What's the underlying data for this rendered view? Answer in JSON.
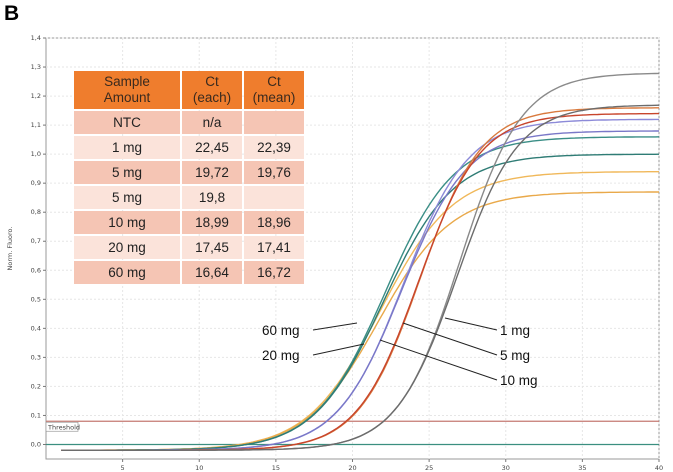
{
  "panel_label": "B",
  "chart_data": {
    "type": "line",
    "title": "",
    "xlabel": "",
    "ylabel": "Norm. Fluoro.",
    "xlim": [
      0,
      40
    ],
    "ylim": [
      -0.05,
      1.4
    ],
    "xticks": [
      5,
      10,
      15,
      20,
      25,
      30,
      35,
      40
    ],
    "yticks": [
      0.0,
      0.1,
      0.2,
      0.3,
      0.4,
      0.5,
      0.6,
      0.7,
      0.8,
      0.9,
      1.0,
      1.1,
      1.2,
      1.3,
      1.4
    ],
    "ytick_labels": [
      "0,0",
      "0,1",
      "0,2",
      "0,3",
      "0,4",
      "0,5",
      "0,6",
      "0,7",
      "0,8",
      "0,9",
      "1,0",
      "1,1",
      "1,2",
      "1,3",
      "1,4"
    ],
    "threshold": {
      "label": "Threshold",
      "value": 0.08,
      "color": "#c47a72"
    },
    "ntc_baseline": {
      "value": 0.0,
      "color": "#3b8f80"
    },
    "grid": true,
    "series": [
      {
        "group": "60 mg",
        "midpoint": 21.8,
        "slope": 0.42,
        "plateau": 0.96,
        "color": "#f0b85a"
      },
      {
        "group": "60 mg",
        "midpoint": 21.7,
        "slope": 0.42,
        "plateau": 0.89,
        "color": "#e9a94a"
      },
      {
        "group": "20 mg",
        "midpoint": 22.1,
        "slope": 0.44,
        "plateau": 1.08,
        "color": "#3a8e86"
      },
      {
        "group": "20 mg",
        "midpoint": 22.0,
        "slope": 0.44,
        "plateau": 1.02,
        "color": "#2f7c75"
      },
      {
        "group": "10 mg",
        "midpoint": 23.3,
        "slope": 0.47,
        "plateau": 1.14,
        "color": "#8c8ad8"
      },
      {
        "group": "10 mg",
        "midpoint": 23.2,
        "slope": 0.47,
        "plateau": 1.1,
        "color": "#7a78c8"
      },
      {
        "group": "5 mg",
        "midpoint": 24.4,
        "slope": 0.5,
        "plateau": 1.18,
        "color": "#d97a3e"
      },
      {
        "group": "5 mg",
        "midpoint": 24.3,
        "slope": 0.5,
        "plateau": 1.16,
        "color": "#c8452c"
      },
      {
        "group": "1 mg",
        "midpoint": 27.0,
        "slope": 0.5,
        "plateau": 1.3,
        "color": "#8a8a8a"
      },
      {
        "group": "1 mg",
        "midpoint": 26.8,
        "slope": 0.5,
        "plateau": 1.19,
        "color": "#6c6c6c"
      }
    ],
    "annotations": [
      {
        "text": "60 mg",
        "side": "left"
      },
      {
        "text": "20 mg",
        "side": "left"
      },
      {
        "text": "1 mg",
        "side": "right"
      },
      {
        "text": "5 mg",
        "side": "right"
      },
      {
        "text": "10 mg",
        "side": "right"
      }
    ]
  },
  "table": {
    "headers": [
      [
        "Sample",
        "Amount"
      ],
      [
        "Ct",
        "(each)"
      ],
      [
        "Ct",
        "(mean)"
      ]
    ],
    "rows": [
      [
        "NTC",
        "n/a",
        ""
      ],
      [
        "1 mg",
        "22,45",
        "22,39"
      ],
      [
        "5 mg",
        "19,72",
        "19,76"
      ],
      [
        "5 mg",
        "19,8",
        ""
      ],
      [
        "10 mg",
        "18,99",
        "18,96"
      ],
      [
        "20 mg",
        "17,45",
        "17,41"
      ],
      [
        "60 mg",
        "16,64",
        "16,72"
      ]
    ]
  }
}
